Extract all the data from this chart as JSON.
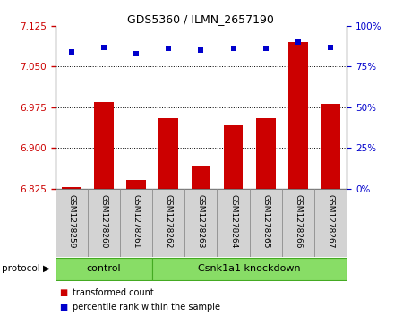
{
  "title": "GDS5360 / ILMN_2657190",
  "samples": [
    "GSM1278259",
    "GSM1278260",
    "GSM1278261",
    "GSM1278262",
    "GSM1278263",
    "GSM1278264",
    "GSM1278265",
    "GSM1278266",
    "GSM1278267"
  ],
  "bar_values": [
    6.828,
    6.985,
    6.84,
    6.955,
    6.868,
    6.942,
    6.955,
    7.095,
    6.982
  ],
  "dot_values": [
    84,
    87,
    83,
    86,
    85,
    86,
    86,
    90,
    87
  ],
  "bar_color": "#cc0000",
  "dot_color": "#0000cc",
  "ylim_left": [
    6.825,
    7.125
  ],
  "ylim_right": [
    0,
    100
  ],
  "yticks_left": [
    6.825,
    6.9,
    6.975,
    7.05,
    7.125
  ],
  "yticks_right": [
    0,
    25,
    50,
    75,
    100
  ],
  "grid_values": [
    7.05,
    6.975,
    6.9
  ],
  "control_samples": 3,
  "control_label": "control",
  "knockdown_label": "Csnk1a1 knockdown",
  "protocol_label": "protocol",
  "legend_bar": "transformed count",
  "legend_dot": "percentile rank within the sample",
  "bar_width": 0.6,
  "bg_color": "#ffffff",
  "tick_color_left": "#cc0000",
  "tick_color_right": "#0000cc",
  "group_bg": "#d3d3d3",
  "green_color": "#88dd66",
  "title_fontsize": 9
}
